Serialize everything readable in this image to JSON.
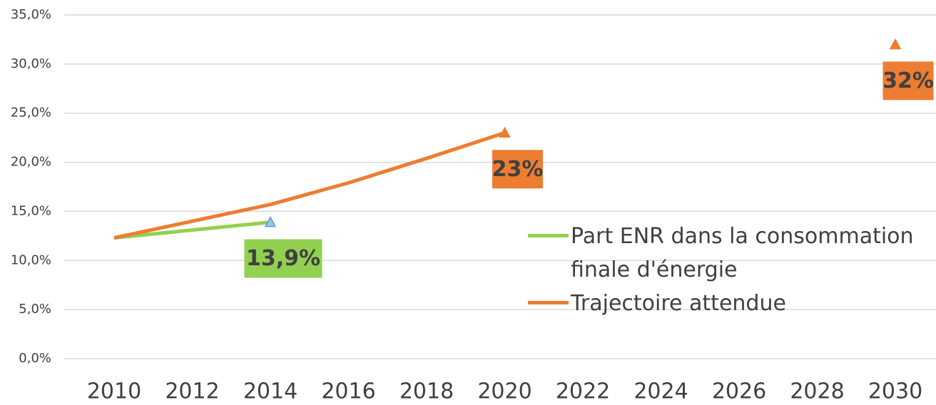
{
  "chart_data": {
    "type": "line",
    "x": [
      2010,
      2012,
      2014,
      2016,
      2018,
      2020,
      2022,
      2030
    ],
    "series": [
      {
        "name": "Part ENR dans la consommation finale d'énergie",
        "color": "#92d050",
        "values": [
          12.3,
          13.1,
          13.9,
          null,
          null,
          null,
          null,
          null
        ],
        "value_labels": [
          null,
          null,
          "13,9%",
          null,
          null,
          null,
          null,
          null
        ]
      },
      {
        "name": "Trajectoire attendue",
        "color": "#ed7d31",
        "values": [
          12.3,
          14.0,
          15.7,
          17.9,
          20.4,
          23,
          null,
          32
        ],
        "value_labels": [
          null,
          null,
          null,
          null,
          null,
          "23%",
          null,
          "32%"
        ]
      }
    ],
    "xlim": [
      2010,
      2030
    ],
    "xticks": [
      2010,
      2012,
      2014,
      2016,
      2018,
      2020,
      2022,
      2024,
      2026,
      2028,
      2030
    ],
    "ylim": [
      0,
      35
    ],
    "yticks": [
      {
        "value": 0,
        "label": "0,0%"
      },
      {
        "value": 5,
        "label": "5,0%"
      },
      {
        "value": 10,
        "label": "10,0%"
      },
      {
        "value": 15,
        "label": "15,0%"
      },
      {
        "value": 20,
        "label": "20,0%"
      },
      {
        "value": 25,
        "label": "25,0%"
      },
      {
        "value": 30,
        "label": "30,0%"
      },
      {
        "value": 35,
        "label": "35,0%"
      }
    ],
    "grid": true
  }
}
